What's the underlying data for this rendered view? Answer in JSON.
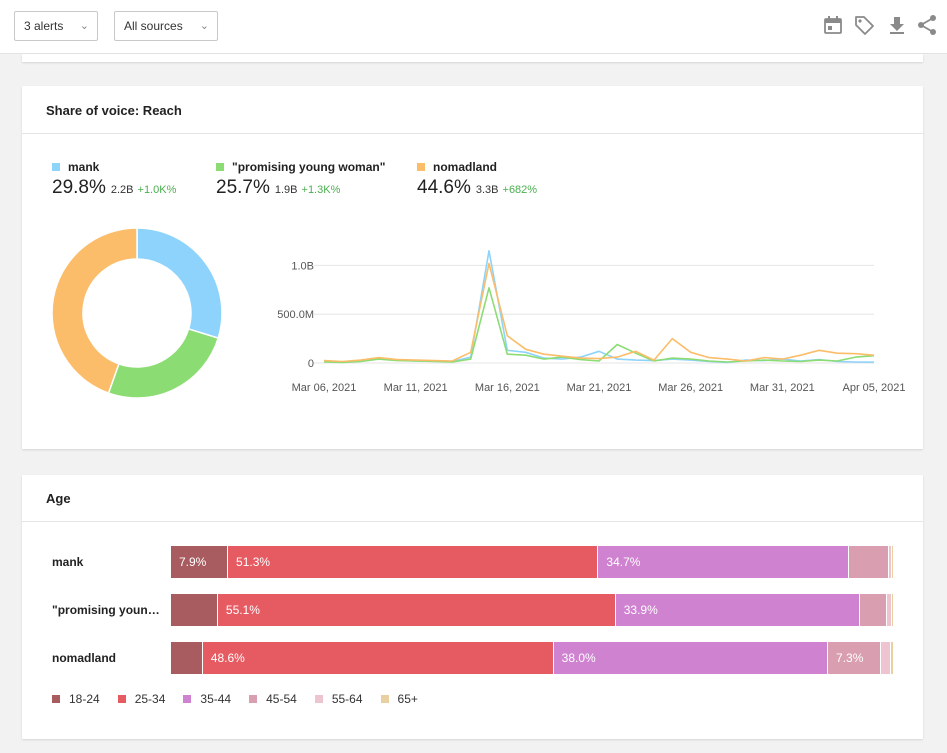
{
  "toolbar": {
    "alerts_dropdown": "3 alerts",
    "sources_dropdown": "All sources",
    "icons": [
      "calendar-icon",
      "tag-icon",
      "download-icon",
      "share-icon"
    ]
  },
  "reach_card": {
    "title": "Share of voice: Reach",
    "series": [
      {
        "name": "mank",
        "pct": "29.8%",
        "abs": "2.2B",
        "delta": "+1.0K%",
        "color": "#8dd3fb"
      },
      {
        "name": "\"promising young woman\"",
        "pct": "25.7%",
        "abs": "1.9B",
        "delta": "+1.3K%",
        "color": "#8cdc74"
      },
      {
        "name": "nomadland",
        "pct": "44.6%",
        "abs": "3.3B",
        "delta": "+682%",
        "color": "#fbbd6a"
      }
    ]
  },
  "chart_data": [
    {
      "type": "pie",
      "categories": [
        "mank",
        "\"promising young woman\"",
        "nomadland"
      ],
      "values": [
        29.8,
        25.7,
        44.6
      ],
      "colors": [
        "#8dd3fb",
        "#8cdc74",
        "#fbbd6a"
      ],
      "donut": true
    },
    {
      "type": "line",
      "x": [
        "Mar 06",
        "Mar 07",
        "Mar 08",
        "Mar 09",
        "Mar 10",
        "Mar 11",
        "Mar 12",
        "Mar 13",
        "Mar 14",
        "Mar 15",
        "Mar 16",
        "Mar 17",
        "Mar 18",
        "Mar 19",
        "Mar 20",
        "Mar 21",
        "Mar 22",
        "Mar 23",
        "Mar 24",
        "Mar 25",
        "Mar 26",
        "Mar 27",
        "Mar 28",
        "Mar 29",
        "Mar 30",
        "Mar 31",
        "Apr 01",
        "Apr 02",
        "Apr 03",
        "Apr 04",
        "Apr 05"
      ],
      "x_tick_labels": [
        "Mar 06, 2021",
        "Mar 11, 2021",
        "Mar 16, 2021",
        "Mar 21, 2021",
        "Mar 26, 2021",
        "Mar 31, 2021",
        "Apr 05, 2021"
      ],
      "y_tick_labels": [
        "0",
        "500.0M",
        "1.0B"
      ],
      "y_ticks": [
        0,
        500,
        1000
      ],
      "ylim": [
        0,
        1250
      ],
      "y_unit": "M",
      "grid": true,
      "series": [
        {
          "name": "mank",
          "color": "#8dd3fb",
          "values": [
            20,
            10,
            20,
            45,
            30,
            20,
            20,
            15,
            60,
            1150,
            130,
            110,
            50,
            40,
            60,
            120,
            40,
            30,
            25,
            40,
            30,
            15,
            5,
            30,
            25,
            40,
            20,
            35,
            15,
            10,
            8
          ]
        },
        {
          "name": "\"promising young woman\"",
          "color": "#8cdc74",
          "values": [
            10,
            5,
            15,
            40,
            25,
            20,
            15,
            10,
            40,
            770,
            90,
            80,
            40,
            60,
            35,
            20,
            190,
            100,
            20,
            50,
            40,
            20,
            10,
            20,
            30,
            20,
            15,
            30,
            20,
            60,
            75
          ]
        },
        {
          "name": "nomadland",
          "color": "#fbbd6a",
          "values": [
            25,
            15,
            30,
            55,
            35,
            30,
            25,
            20,
            110,
            1020,
            280,
            140,
            90,
            70,
            50,
            45,
            60,
            120,
            30,
            250,
            110,
            55,
            40,
            20,
            55,
            40,
            80,
            130,
            100,
            95,
            80
          ]
        }
      ]
    },
    {
      "type": "bar",
      "stacked": true,
      "orientation": "horizontal",
      "categories": [
        "mank",
        "\"promising young woman\"",
        "nomadland"
      ],
      "series": [
        {
          "name": "18-24",
          "color": "#a85c5f",
          "values": [
            7.9,
            6.5,
            4.4
          ]
        },
        {
          "name": "25-34",
          "color": "#e65a62",
          "values": [
            51.3,
            55.1,
            48.6
          ]
        },
        {
          "name": "35-44",
          "color": "#cf82cf",
          "values": [
            34.7,
            33.9,
            38.0
          ]
        },
        {
          "name": "45-54",
          "color": "#d99eaf",
          "values": [
            5.6,
            3.7,
            7.3
          ]
        },
        {
          "name": "55-64",
          "color": "#edc4cf",
          "values": [
            0.3,
            0.6,
            1.4
          ]
        },
        {
          "name": "65+",
          "color": "#e8d0a0",
          "values": [
            0.2,
            0.2,
            0.3
          ]
        }
      ]
    }
  ],
  "age_card": {
    "title": "Age",
    "rows": [
      {
        "label": "mank",
        "segment_labels": [
          "7.9%",
          "51.3%",
          "34.7%",
          "",
          "",
          ""
        ]
      },
      {
        "label": "\"promising youn…",
        "segment_labels": [
          "",
          "55.1%",
          "33.9%",
          "",
          "",
          ""
        ]
      },
      {
        "label": "nomadland",
        "segment_labels": [
          "",
          "48.6%",
          "38.0%",
          "7.3%",
          "",
          ""
        ]
      }
    ],
    "legend": [
      "18-24",
      "25-34",
      "35-44",
      "45-54",
      "55-64",
      "65+"
    ]
  }
}
